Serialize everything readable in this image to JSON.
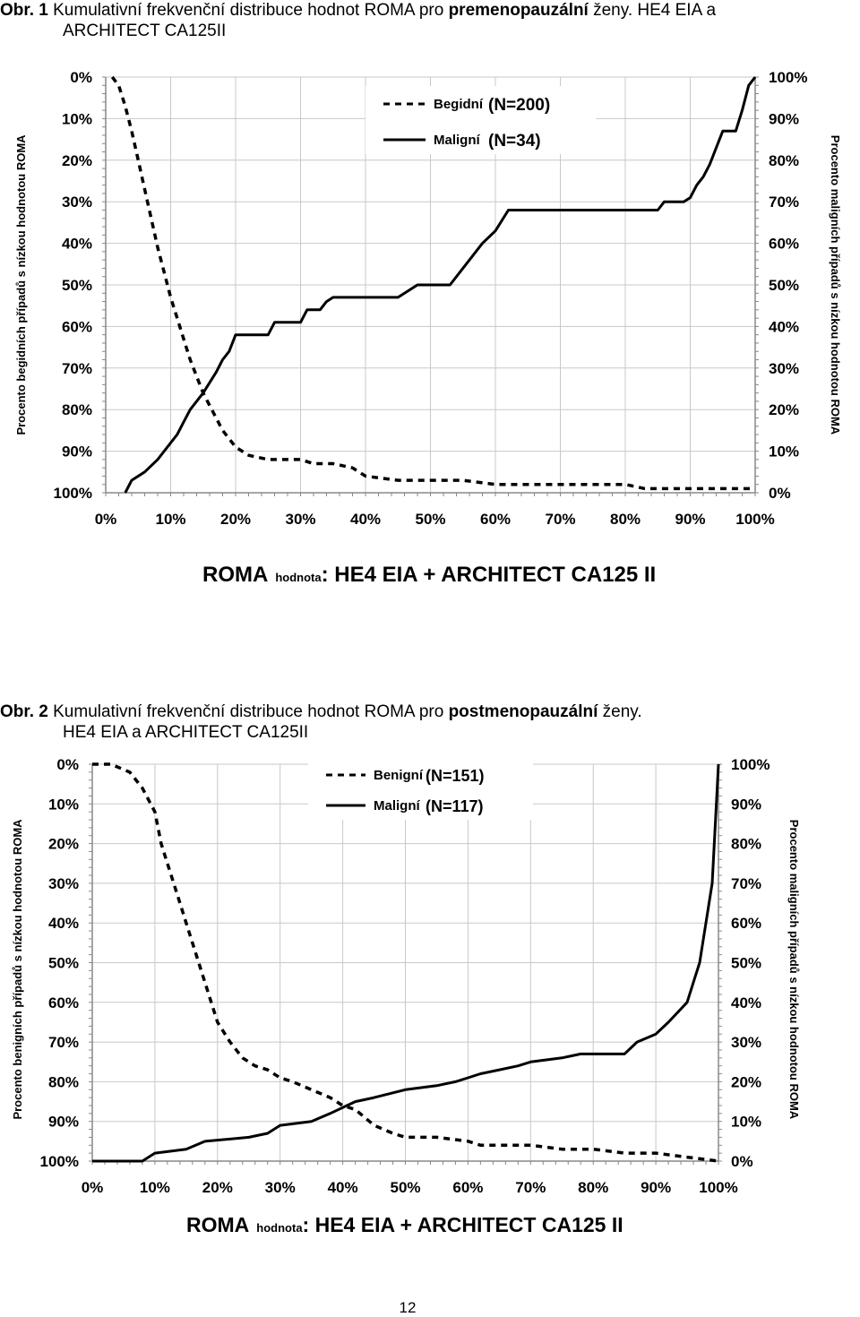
{
  "page_number": "12",
  "figures": [
    {
      "caption": {
        "prefix": "Obr. 1",
        "text_a": " Kumulativní frekvenční distribuce hodnot ROMA pro ",
        "bold": "premenopauzální",
        "text_b": " ženy. HE4 EIA a",
        "line2": "ARCHITECT CA125II"
      },
      "y_left_label": "Procento begidních případů s nízkou hodnotou ROMA",
      "y_right_label": "Procento maligních případů s nízkou hodnotou ROMA",
      "x_title_big_a": "ROMA",
      "x_title_small": "hodnota",
      "x_title_big_b": ": HE4 EIA + ARCHITECT CA125 II"
    },
    {
      "caption": {
        "prefix": "Obr. 2",
        "text_a": " Kumulativní frekvenční distribuce hodnot ROMA pro ",
        "bold": "postmenopauzální",
        "text_b": " ženy.",
        "line2": "HE4 EIA a ARCHITECT CA125II"
      },
      "y_left_label": "Procento benigních případů s nízkou hodnotou ROMA",
      "y_right_label": "Procento maligních případů s nízkou hodnotou ROMA",
      "x_title_big_a": "ROMA",
      "x_title_small": "hodnota",
      "x_title_big_b": ": HE4 EIA + ARCHITECT CA125 II"
    }
  ],
  "chart_data": [
    {
      "type": "line",
      "x_ticks": [
        "0%",
        "10%",
        "20%",
        "30%",
        "40%",
        "50%",
        "60%",
        "70%",
        "80%",
        "90%",
        "100%"
      ],
      "y_left_ticks": [
        "0%",
        "10%",
        "20%",
        "30%",
        "40%",
        "50%",
        "60%",
        "70%",
        "80%",
        "90%",
        "100%"
      ],
      "y_right_ticks": [
        "100%",
        "90%",
        "80%",
        "70%",
        "60%",
        "50%",
        "40%",
        "30%",
        "20%",
        "10%",
        "0%"
      ],
      "xlim": [
        0,
        100
      ],
      "ylim_left": [
        0,
        100
      ],
      "ylim_right": [
        0,
        100
      ],
      "grid": true,
      "legend_position": "top-center",
      "series": [
        {
          "name": "Begidní",
          "n_label": "(N=200)",
          "style": "dashed",
          "axis": "left",
          "x": [
            1,
            2,
            3,
            4,
            5,
            6,
            7,
            8,
            9,
            10,
            11,
            12,
            13,
            14,
            15,
            16,
            17,
            18,
            19,
            20,
            21,
            22,
            25,
            30,
            32,
            35,
            38,
            40,
            45,
            50,
            55,
            60,
            65,
            70,
            75,
            80,
            83,
            85,
            90,
            95,
            100
          ],
          "y": [
            0,
            2,
            7,
            13,
            20,
            27,
            34,
            41,
            47,
            53,
            58,
            63,
            68,
            72,
            76,
            79,
            82,
            85,
            87,
            89,
            90,
            91,
            92,
            92,
            93,
            93,
            94,
            96,
            97,
            97,
            97,
            98,
            98,
            98,
            98,
            98,
            99,
            99,
            99,
            99,
            99
          ]
        },
        {
          "name": "Maligní",
          "n_label": "(N=34)",
          "style": "solid",
          "axis": "right",
          "x": [
            3,
            4,
            6,
            8,
            10,
            11,
            12,
            13,
            15,
            17,
            18,
            19,
            20,
            22,
            25,
            26,
            27,
            30,
            31,
            33,
            34,
            35,
            37,
            40,
            45,
            48,
            50,
            53,
            56,
            58,
            60,
            62,
            64,
            66,
            68,
            70,
            75,
            85,
            86,
            87,
            89,
            90,
            91,
            92,
            93,
            94,
            95,
            97,
            98,
            99,
            100
          ],
          "y": [
            0,
            3,
            5,
            8,
            12,
            14,
            17,
            20,
            24,
            29,
            32,
            34,
            38,
            38,
            38,
            41,
            41,
            41,
            44,
            44,
            46,
            47,
            47,
            47,
            47,
            50,
            50,
            50,
            56,
            60,
            63,
            68,
            68,
            68,
            68,
            68,
            68,
            68,
            70,
            70,
            70,
            71,
            74,
            76,
            79,
            83,
            87,
            87,
            92,
            98,
            100
          ]
        }
      ]
    },
    {
      "type": "line",
      "x_ticks": [
        "0%",
        "10%",
        "20%",
        "30%",
        "40%",
        "50%",
        "60%",
        "70%",
        "80%",
        "90%",
        "100%"
      ],
      "y_left_ticks": [
        "0%",
        "10%",
        "20%",
        "30%",
        "40%",
        "50%",
        "60%",
        "70%",
        "80%",
        "90%",
        "100%"
      ],
      "y_right_ticks": [
        "100%",
        "90%",
        "80%",
        "70%",
        "60%",
        "50%",
        "40%",
        "30%",
        "20%",
        "10%",
        "0%"
      ],
      "xlim": [
        0,
        100
      ],
      "ylim_left": [
        0,
        100
      ],
      "ylim_right": [
        0,
        100
      ],
      "grid": true,
      "legend_position": "top-center",
      "series": [
        {
          "name": "Benigní",
          "n_label": "(N=151)",
          "style": "dashed",
          "axis": "left",
          "x": [
            0,
            3,
            6,
            8,
            10,
            11,
            12,
            14,
            15,
            16,
            18,
            19,
            20,
            22,
            24,
            26,
            28,
            30,
            32,
            35,
            38,
            40,
            42,
            45,
            48,
            50,
            55,
            60,
            62,
            65,
            70,
            75,
            80,
            85,
            90,
            95,
            100
          ],
          "y": [
            0,
            0,
            2,
            6,
            12,
            20,
            25,
            35,
            40,
            45,
            55,
            60,
            65,
            70,
            74,
            76,
            77,
            79,
            80,
            82,
            84,
            86,
            87,
            91,
            93,
            94,
            94,
            95,
            96,
            96,
            96,
            97,
            97,
            98,
            98,
            99,
            100
          ]
        },
        {
          "name": "Maligní",
          "n_label": "(N=117)",
          "style": "solid",
          "axis": "right",
          "x": [
            0,
            8,
            10,
            15,
            18,
            25,
            28,
            30,
            35,
            38,
            42,
            45,
            50,
            55,
            58,
            60,
            62,
            65,
            68,
            70,
            75,
            78,
            80,
            85,
            87,
            90,
            92,
            95,
            96,
            97,
            98,
            99,
            100
          ],
          "y": [
            0,
            0,
            2,
            3,
            5,
            6,
            7,
            9,
            10,
            12,
            15,
            16,
            18,
            19,
            20,
            21,
            22,
            23,
            24,
            25,
            26,
            27,
            27,
            27,
            30,
            32,
            35,
            40,
            45,
            50,
            60,
            70,
            100
          ]
        }
      ]
    }
  ]
}
